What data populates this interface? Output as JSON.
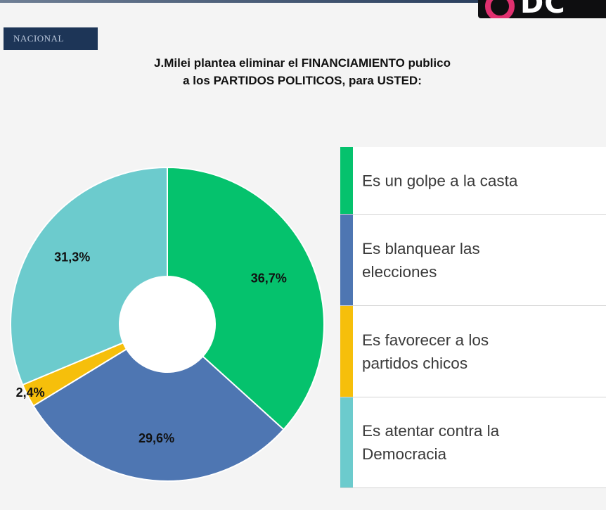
{
  "header": {
    "logo_text": "DC",
    "section_tag": "NACIONAL"
  },
  "title": {
    "line1": "J.Milei plantea eliminar el FINANCIAMIENTO publico",
    "line2": "a los PARTIDOS POLITICOS, para USTED:"
  },
  "colors": {
    "green": "#05c26d",
    "blue": "#4e76b2",
    "yellow": "#f6bf0b",
    "teal": "#6ccbcd",
    "logo_pink": "#e0306f"
  },
  "chart_data": {
    "type": "pie",
    "donut": true,
    "start_angle": "12 o'clock",
    "direction": "clockwise",
    "legend_position": "right",
    "slices": [
      {
        "label": "Es un golpe a la casta",
        "value": 36.7,
        "value_label": "36,7%",
        "color": "#05c26d"
      },
      {
        "label": "Es blanquear las elecciones",
        "value": 29.6,
        "value_label": "29,6%",
        "color": "#4e76b2"
      },
      {
        "label": "Es favorecer a los partidos chicos",
        "value": 2.4,
        "value_label": "2,4%",
        "color": "#f6bf0b"
      },
      {
        "label": "Es atentar contra la Democracia",
        "value": 31.3,
        "value_label": "31,3%",
        "color": "#6ccbcd"
      }
    ]
  },
  "legend": {
    "items": [
      {
        "line1": "Es un golpe a la casta",
        "line2": ""
      },
      {
        "line1": "Es blanquear las",
        "line2": "elecciones"
      },
      {
        "line1": "Es favorecer a los",
        "line2": "partidos chicos"
      },
      {
        "line1": "Es atentar contra la",
        "line2": "Democracia"
      }
    ]
  }
}
